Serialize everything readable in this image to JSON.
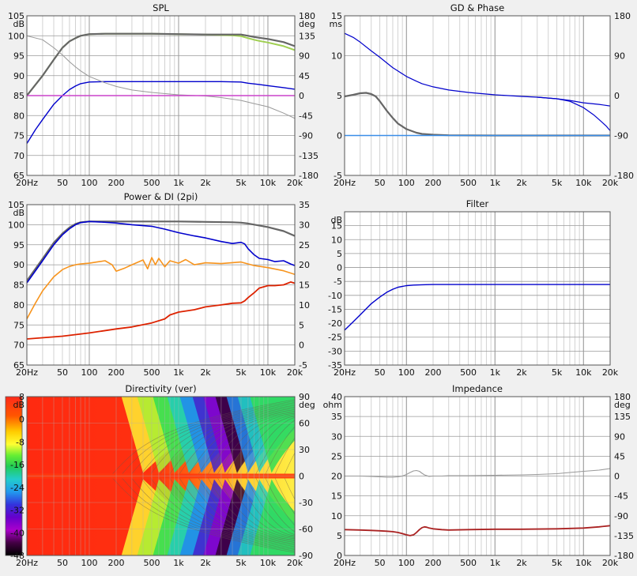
{
  "colors": {
    "frame": "#555555",
    "grid_major": "#9a9a9a",
    "grid_minor": "#d2d2d2",
    "plot_bg": "#ffffff",
    "page_bg": "#f0f0f0"
  },
  "x_ticks": [
    "20Hz",
    "50",
    "100",
    "200",
    "500",
    "1k",
    "2k",
    "5k",
    "10k",
    "20k"
  ],
  "x_tick_values": [
    20,
    50,
    100,
    200,
    500,
    1000,
    2000,
    5000,
    10000,
    20000
  ],
  "chart_data": [
    {
      "id": "spl",
      "type": "line",
      "title": "SPL",
      "xscale": "log",
      "xlim": [
        20,
        20000
      ],
      "ylabel": "dB",
      "ylim": [
        65,
        105
      ],
      "yticks": [
        65,
        70,
        75,
        80,
        85,
        90,
        95,
        100,
        105
      ],
      "y2label": "deg",
      "y2lim": [
        -180,
        180
      ],
      "y2ticks": [
        -180,
        -135,
        -90,
        -45,
        0,
        45,
        90,
        135,
        180
      ],
      "series": [
        {
          "color": "#9fcf50",
          "width": 2,
          "axis": "left",
          "x": [
            20,
            30,
            40,
            50,
            60,
            70,
            80,
            100,
            150,
            200,
            500,
            1000,
            2000,
            4000,
            5000,
            6000,
            7000,
            8000,
            10000,
            15000,
            20000
          ],
          "y": [
            85,
            90,
            94,
            97,
            98.6,
            99.4,
            100,
            100.4,
            100.5,
            100.5,
            100.5,
            100.4,
            100.3,
            100.1,
            99.9,
            99.4,
            99,
            98.7,
            98.3,
            97.4,
            96.4
          ]
        },
        {
          "color": "#666666",
          "width": 2.2,
          "axis": "left",
          "x": [
            20,
            30,
            40,
            50,
            60,
            70,
            80,
            100,
            150,
            200,
            500,
            1000,
            2000,
            4000,
            5000,
            6000,
            7000,
            8000,
            10000,
            15000,
            20000
          ],
          "y": [
            85,
            90,
            94,
            97,
            98.6,
            99.4,
            100,
            100.4,
            100.5,
            100.5,
            100.5,
            100.4,
            100.3,
            100.3,
            100.3,
            100,
            99.7,
            99.5,
            99.2,
            98.4,
            97.4
          ]
        },
        {
          "color": "#0000cc",
          "width": 1.4,
          "axis": "left",
          "x": [
            20,
            25,
            30,
            40,
            50,
            60,
            70,
            80,
            100,
            150,
            200,
            500,
            1000,
            2000,
            3000,
            5000,
            6000,
            8000,
            10000,
            15000,
            20000
          ],
          "y": [
            73,
            76.5,
            79,
            82.8,
            85,
            86.5,
            87.4,
            88,
            88.4,
            88.5,
            88.5,
            88.5,
            88.5,
            88.5,
            88.5,
            88.4,
            88.1,
            87.8,
            87.5,
            87,
            86.6
          ]
        },
        {
          "color": "#999999",
          "width": 1,
          "axis": "left",
          "x": [
            20,
            30,
            40,
            50,
            60,
            70,
            80,
            100,
            150,
            200,
            300,
            500,
            1000,
            2000,
            3000,
            5000,
            7000,
            10000,
            15000,
            20000
          ],
          "y": [
            100,
            99,
            97,
            95.2,
            93.5,
            92.2,
            91.2,
            89.8,
            88.2,
            87.3,
            86.4,
            85.8,
            85.2,
            84.9,
            84.5,
            83.8,
            83,
            82.2,
            80.6,
            79.3
          ]
        },
        {
          "color": "#cc44cc",
          "width": 1.5,
          "axis": "left",
          "x": [
            20,
            20000
          ],
          "y": [
            85,
            85
          ]
        }
      ]
    },
    {
      "id": "gd",
      "type": "line",
      "title": "GD & Phase",
      "xscale": "log",
      "xlim": [
        20,
        20000
      ],
      "ylabel": "ms",
      "ylim": [
        -5,
        15
      ],
      "yticks": [
        -5,
        0,
        5,
        10,
        15
      ],
      "y2label": "",
      "y2lim": [
        -180,
        180
      ],
      "y2ticks": [
        -180,
        -90,
        0,
        90,
        180
      ],
      "series": [
        {
          "color": "#0000cc",
          "width": 1.2,
          "axis": "left",
          "x": [
            20,
            25,
            30,
            40,
            50,
            60,
            70,
            80,
            100,
            130,
            150,
            200,
            300,
            500,
            1000,
            2000,
            3000,
            5000,
            7000,
            10000,
            15000,
            20000
          ],
          "y": [
            12.8,
            12.3,
            11.7,
            10.6,
            9.8,
            9.1,
            8.5,
            8.1,
            7.4,
            6.8,
            6.5,
            6.1,
            5.7,
            5.4,
            5.1,
            4.9,
            4.8,
            4.6,
            4.4,
            4.1,
            3.9,
            3.7
          ]
        },
        {
          "color": "#0000cc",
          "width": 1.2,
          "axis": "left",
          "x": [
            3000,
            5000,
            7000,
            10000,
            13000,
            15000,
            18000,
            20000
          ],
          "y": [
            4.8,
            4.6,
            4.3,
            3.5,
            2.6,
            2.0,
            1.2,
            0.6
          ]
        },
        {
          "color": "#666666",
          "width": 2.2,
          "axis": "left",
          "x": [
            20,
            25,
            30,
            35,
            40,
            45,
            50,
            60,
            70,
            80,
            100,
            130,
            150,
            200,
            300,
            500,
            1000,
            20000
          ],
          "y": [
            4.9,
            5.1,
            5.3,
            5.35,
            5.2,
            4.9,
            4.3,
            3.1,
            2.2,
            1.5,
            0.8,
            0.35,
            0.2,
            0.1,
            0.03,
            0.01,
            0,
            0
          ]
        },
        {
          "color": "#3a8ee8",
          "width": 1.6,
          "axis": "left",
          "x": [
            20,
            20000
          ],
          "y": [
            0,
            0
          ]
        }
      ]
    },
    {
      "id": "power",
      "type": "line",
      "title": "Power & DI (2pi)",
      "xscale": "log",
      "xlim": [
        20,
        20000
      ],
      "ylabel": "dB",
      "ylim": [
        65,
        105
      ],
      "yticks": [
        65,
        70,
        75,
        80,
        85,
        90,
        95,
        100,
        105
      ],
      "y2label": "",
      "y2lim": [
        -5,
        35
      ],
      "y2ticks": [
        -5,
        0,
        5,
        10,
        15,
        20,
        25,
        30,
        35
      ],
      "series": [
        {
          "color": "#666666",
          "width": 2.2,
          "axis": "left",
          "x": [
            20,
            30,
            40,
            50,
            60,
            70,
            80,
            100,
            200,
            500,
            1000,
            2000,
            4000,
            5000,
            6000,
            8000,
            10000,
            15000,
            20000
          ],
          "y": [
            86,
            91.5,
            95.5,
            97.8,
            99.3,
            100.2,
            100.6,
            100.8,
            100.8,
            100.8,
            100.8,
            100.7,
            100.6,
            100.5,
            100.3,
            99.8,
            99.4,
            98.4,
            97.2
          ]
        },
        {
          "color": "#0000cc",
          "width": 1.6,
          "axis": "left",
          "x": [
            20,
            30,
            40,
            50,
            60,
            70,
            80,
            100,
            150,
            200,
            300,
            500,
            700,
            1000,
            1500,
            2000,
            3000,
            4000,
            5000,
            5500,
            6000,
            7000,
            8000,
            10000,
            12000,
            15000,
            18000,
            20000
          ],
          "y": [
            85.5,
            91,
            95,
            97.5,
            99,
            100,
            100.5,
            100.8,
            100.6,
            100.4,
            100,
            99.6,
            98.9,
            98,
            97.2,
            96.7,
            95.8,
            95.3,
            95.6,
            95.2,
            94,
            92.5,
            91.6,
            91.3,
            90.8,
            91,
            90.2,
            89.8
          ]
        },
        {
          "color": "#f7941d",
          "width": 1.6,
          "axis": "left",
          "x": [
            20,
            25,
            30,
            40,
            50,
            60,
            70,
            80,
            100,
            130,
            150,
            180,
            200,
            250,
            300,
            400,
            450,
            500,
            550,
            600,
            700,
            800,
            1000,
            1200,
            1500,
            2000,
            3000,
            5000,
            7000,
            10000,
            15000,
            20000
          ],
          "y": [
            76.5,
            80.5,
            83.5,
            87,
            88.8,
            89.6,
            90,
            90.2,
            90.4,
            90.8,
            91,
            90,
            88.4,
            89.2,
            90,
            91.2,
            89,
            91.8,
            90,
            91.6,
            89.5,
            91,
            90.4,
            91.3,
            90,
            90.5,
            90.3,
            90.7,
            89.8,
            89.3,
            88.5,
            87.6
          ]
        },
        {
          "color": "#dd2200",
          "width": 1.8,
          "axis": "left",
          "x": [
            20,
            50,
            100,
            200,
            300,
            500,
            700,
            800,
            1000,
            1500,
            2000,
            3000,
            4000,
            5000,
            5500,
            6000,
            7000,
            8000,
            10000,
            12000,
            15000,
            18000,
            20000
          ],
          "y": [
            71.5,
            72.2,
            73,
            74,
            74.5,
            75.5,
            76.5,
            77.5,
            78.2,
            78.8,
            79.5,
            80,
            80.4,
            80.5,
            81,
            81.8,
            83,
            84.2,
            84.8,
            84.8,
            85,
            85.7,
            85.4
          ]
        }
      ]
    },
    {
      "id": "filter",
      "type": "line",
      "title": "Filter",
      "xscale": "log",
      "xlim": [
        20,
        20000
      ],
      "ylabel": "dB",
      "ylim": [
        -35,
        20
      ],
      "yticks": [
        -35,
        -30,
        -25,
        -20,
        -15,
        -10,
        -5,
        0,
        5,
        10,
        15
      ],
      "series": [
        {
          "color": "#0000cc",
          "width": 1.4,
          "axis": "left",
          "x": [
            20,
            25,
            30,
            40,
            50,
            60,
            70,
            80,
            100,
            120,
            150,
            200,
            500,
            20000
          ],
          "y": [
            -22.5,
            -19.5,
            -17,
            -13,
            -10.6,
            -8.9,
            -7.8,
            -7.1,
            -6.5,
            -6.3,
            -6.2,
            -6.1,
            -6.1,
            -6.1
          ]
        }
      ]
    },
    {
      "id": "directivity",
      "type": "heatmap",
      "title": "Directivity (ver)",
      "xscale": "log",
      "xlim": [
        20,
        20000
      ],
      "ylabel": "dB",
      "colorbar": {
        "lim": [
          -48,
          8
        ],
        "ticks": [
          8,
          0,
          -8,
          -16,
          -24,
          -32,
          -40,
          -48
        ]
      },
      "y2label": "deg",
      "y2lim": [
        -90,
        90
      ],
      "y2ticks": [
        -90,
        -60,
        -30,
        0,
        30,
        60,
        90
      ]
    },
    {
      "id": "impedance",
      "type": "line",
      "title": "Impedance",
      "xscale": "log",
      "xlim": [
        20,
        20000
      ],
      "ylabel": "ohm",
      "ylim": [
        0,
        40
      ],
      "yticks": [
        0,
        5,
        10,
        15,
        20,
        25,
        30,
        35,
        40
      ],
      "y2label": "deg",
      "y2lim": [
        -180,
        180
      ],
      "y2ticks": [
        -180,
        -135,
        -90,
        -45,
        0,
        45,
        90,
        135,
        180
      ],
      "series": [
        {
          "color": "#999999",
          "width": 1.1,
          "axis": "left",
          "x": [
            20,
            30,
            40,
            50,
            60,
            70,
            80,
            90,
            100,
            110,
            120,
            130,
            140,
            150,
            160,
            180,
            200,
            250,
            300,
            500,
            1000,
            2000,
            3000,
            5000,
            7000,
            10000,
            15000,
            20000
          ],
          "y": [
            20,
            20,
            19.9,
            19.8,
            19.7,
            19.7,
            19.8,
            20,
            20.4,
            20.9,
            21.3,
            21.4,
            21.2,
            20.7,
            20.3,
            19.9,
            20,
            20,
            20.1,
            20.1,
            20.2,
            20.3,
            20.4,
            20.6,
            20.9,
            21.2,
            21.5,
            21.9
          ]
        },
        {
          "color": "#aa2222",
          "width": 1.8,
          "axis": "left",
          "x": [
            20,
            30,
            40,
            50,
            60,
            70,
            80,
            90,
            100,
            110,
            120,
            130,
            140,
            150,
            160,
            170,
            180,
            200,
            250,
            300,
            500,
            1000,
            2000,
            5000,
            10000,
            15000,
            20000
          ],
          "y": [
            6.5,
            6.4,
            6.3,
            6.2,
            6.1,
            6,
            5.8,
            5.5,
            5.2,
            5,
            5.2,
            5.8,
            6.5,
            7,
            7.2,
            7.1,
            6.9,
            6.7,
            6.5,
            6.4,
            6.5,
            6.6,
            6.6,
            6.7,
            6.9,
            7.2,
            7.5
          ]
        }
      ]
    }
  ]
}
